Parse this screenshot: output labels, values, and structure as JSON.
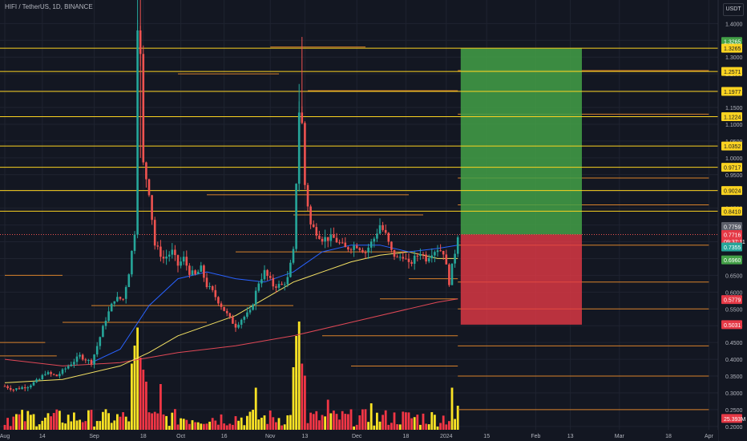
{
  "header": {
    "symbol": "HIFI / TetherUS, 1D, BINANCE",
    "currency": "USDT"
  },
  "colors": {
    "background": "#131722",
    "grid": "#1f2330",
    "up": "#26a69a",
    "down": "#ef5350",
    "vol_up": "#fbe324",
    "vol_down": "#f23645",
    "level": "#fbd321",
    "minor_level": "#d9822b",
    "ema_blue": "#2962ff",
    "ema_yellow": "#f5e264",
    "ema_red": "#e04856",
    "target": "#43a047",
    "stop": "#e53946"
  },
  "chart_data": {
    "type": "candlestick",
    "price_range": [
      0.19,
      1.47
    ],
    "y_ticks": [
      "1.4000",
      "1.3500",
      "1.3000",
      "1.2500",
      "1.2000",
      "1.1500",
      "1.1000",
      "1.0500",
      "1.0000",
      "0.9500",
      "0.9000",
      "0.8500",
      "0.8000",
      "0.7500",
      "0.7000",
      "0.6500",
      "0.6000",
      "0.5500",
      "0.5000",
      "0.4500",
      "0.4000",
      "0.3500",
      "0.3000",
      "0.2500",
      "0.2000"
    ],
    "x_ticks": [
      {
        "label": "Aug",
        "day": 0
      },
      {
        "label": "14",
        "day": 13
      },
      {
        "label": "Sep",
        "day": 31
      },
      {
        "label": "18",
        "day": 48
      },
      {
        "label": "Oct",
        "day": 61
      },
      {
        "label": "16",
        "day": 76
      },
      {
        "label": "Nov",
        "day": 92
      },
      {
        "label": "13",
        "day": 104
      },
      {
        "label": "Dec",
        "day": 122
      },
      {
        "label": "18",
        "day": 139
      },
      {
        "label": "2024",
        "day": 153
      },
      {
        "label": "15",
        "day": 167
      },
      {
        "label": "Feb",
        "day": 184
      },
      {
        "label": "13",
        "day": 196
      },
      {
        "label": "Mar",
        "day": 213
      },
      {
        "label": "18",
        "day": 230
      },
      {
        "label": "Apr",
        "day": 244
      }
    ],
    "price_anchors": [
      [
        0,
        0.32
      ],
      [
        3,
        0.31
      ],
      [
        8,
        0.32
      ],
      [
        12,
        0.34
      ],
      [
        14,
        0.36
      ],
      [
        18,
        0.35
      ],
      [
        22,
        0.38
      ],
      [
        26,
        0.41
      ],
      [
        30,
        0.39
      ],
      [
        32,
        0.44
      ],
      [
        35,
        0.52
      ],
      [
        38,
        0.58
      ],
      [
        41,
        0.58
      ],
      [
        43,
        0.66
      ],
      [
        45,
        0.78
      ],
      [
        46,
        1.4
      ],
      [
        47,
        1.3
      ],
      [
        48,
        0.98
      ],
      [
        50,
        0.9
      ],
      [
        52,
        0.74
      ],
      [
        55,
        0.7
      ],
      [
        58,
        0.72
      ],
      [
        60,
        0.68
      ],
      [
        62,
        0.7
      ],
      [
        64,
        0.66
      ],
      [
        66,
        0.65
      ],
      [
        68,
        0.67
      ],
      [
        70,
        0.62
      ],
      [
        72,
        0.6
      ],
      [
        75,
        0.56
      ],
      [
        78,
        0.52
      ],
      [
        80,
        0.5
      ],
      [
        82,
        0.52
      ],
      [
        85,
        0.54
      ],
      [
        88,
        0.63
      ],
      [
        90,
        0.66
      ],
      [
        93,
        0.62
      ],
      [
        96,
        0.62
      ],
      [
        98,
        0.64
      ],
      [
        100,
        0.72
      ],
      [
        102,
        1.14
      ],
      [
        103,
        1.1
      ],
      [
        104,
        0.92
      ],
      [
        106,
        0.8
      ],
      [
        110,
        0.76
      ],
      [
        114,
        0.76
      ],
      [
        118,
        0.73
      ],
      [
        122,
        0.74
      ],
      [
        125,
        0.72
      ],
      [
        128,
        0.76
      ],
      [
        130,
        0.8
      ],
      [
        132,
        0.77
      ],
      [
        134,
        0.72
      ],
      [
        136,
        0.7
      ],
      [
        138,
        0.71
      ],
      [
        140,
        0.68
      ],
      [
        142,
        0.7
      ],
      [
        144,
        0.72
      ],
      [
        146,
        0.7
      ],
      [
        148,
        0.72
      ],
      [
        150,
        0.73
      ],
      [
        152,
        0.72
      ],
      [
        154,
        0.63
      ],
      [
        156,
        0.72
      ],
      [
        157,
        0.772
      ]
    ],
    "ema_blue": [
      [
        30,
        0.39
      ],
      [
        40,
        0.43
      ],
      [
        50,
        0.56
      ],
      [
        60,
        0.64
      ],
      [
        70,
        0.66
      ],
      [
        80,
        0.64
      ],
      [
        90,
        0.63
      ],
      [
        100,
        0.66
      ],
      [
        110,
        0.72
      ],
      [
        120,
        0.74
      ],
      [
        130,
        0.74
      ],
      [
        140,
        0.72
      ],
      [
        150,
        0.73
      ],
      [
        157,
        0.74
      ]
    ],
    "ema_yellow": [
      [
        0,
        0.33
      ],
      [
        20,
        0.34
      ],
      [
        40,
        0.38
      ],
      [
        50,
        0.42
      ],
      [
        60,
        0.47
      ],
      [
        70,
        0.5
      ],
      [
        80,
        0.53
      ],
      [
        90,
        0.58
      ],
      [
        100,
        0.63
      ],
      [
        110,
        0.66
      ],
      [
        120,
        0.69
      ],
      [
        130,
        0.71
      ],
      [
        140,
        0.72
      ],
      [
        150,
        0.7
      ],
      [
        157,
        0.7
      ]
    ],
    "ema_red": [
      [
        0,
        0.4
      ],
      [
        20,
        0.38
      ],
      [
        40,
        0.39
      ],
      [
        60,
        0.42
      ],
      [
        80,
        0.44
      ],
      [
        100,
        0.47
      ],
      [
        120,
        0.51
      ],
      [
        140,
        0.55
      ],
      [
        150,
        0.57
      ],
      [
        157,
        0.58
      ]
    ],
    "volume_spikes": [
      [
        44,
        0.55
      ],
      [
        45,
        0.7
      ],
      [
        46,
        0.85
      ],
      [
        47,
        0.6
      ],
      [
        48,
        0.5
      ],
      [
        49,
        0.4
      ],
      [
        54,
        0.38
      ],
      [
        87,
        0.35
      ],
      [
        100,
        0.52
      ],
      [
        101,
        0.78
      ],
      [
        102,
        0.9
      ],
      [
        103,
        0.55
      ],
      [
        104,
        0.45
      ],
      [
        112,
        0.25
      ],
      [
        127,
        0.22
      ],
      [
        155,
        0.35
      ],
      [
        157,
        0.2
      ]
    ],
    "level_prices": [
      1.3265,
      1.2571,
      1.1977,
      1.1224,
      1.0352,
      0.9717,
      0.9024,
      0.841
    ],
    "minor_levels": [
      [
        -2,
        18,
        0.41
      ],
      [
        20,
        70,
        0.51
      ],
      [
        30,
        100,
        0.56
      ],
      [
        60,
        95,
        1.25
      ],
      [
        70,
        140,
        0.89
      ],
      [
        80,
        140,
        0.72
      ],
      [
        92,
        125,
        1.33
      ],
      [
        100,
        145,
        0.83
      ],
      [
        105,
        157,
        1.2
      ],
      [
        110,
        157,
        0.47
      ],
      [
        120,
        157,
        0.38
      ],
      [
        130,
        157,
        0.58
      ],
      [
        140,
        157,
        0.64
      ],
      [
        0,
        20,
        0.65
      ],
      [
        -2,
        14,
        0.45
      ],
      [
        157,
        244,
        0.86
      ],
      [
        157,
        244,
        0.63
      ],
      [
        157,
        244,
        0.55
      ],
      [
        157,
        244,
        0.44
      ],
      [
        157,
        244,
        0.35
      ],
      [
        157,
        244,
        0.25
      ],
      [
        157,
        244,
        0.74
      ],
      [
        157,
        244,
        0.94
      ],
      [
        157,
        244,
        1.13
      ],
      [
        157,
        244,
        1.26
      ]
    ],
    "position": {
      "entry": 0.7716,
      "target": 1.3265,
      "stop": 0.5031,
      "start_day": 158,
      "end_day": 200
    },
    "price_labels": [
      {
        "text": "1.3265",
        "price": 1.3465,
        "style": "green"
      },
      {
        "text": "1.3265",
        "price": 1.3265,
        "style": "yellow"
      },
      {
        "text": "1.2571",
        "price": 1.2571,
        "style": "yellow"
      },
      {
        "text": "1.1977",
        "price": 1.1977,
        "style": "yellow"
      },
      {
        "text": "1.1224",
        "price": 1.1224,
        "style": "yellow"
      },
      {
        "text": "1.0352",
        "price": 1.0352,
        "style": "yellow"
      },
      {
        "text": "0.9717",
        "price": 0.9717,
        "style": "yellow"
      },
      {
        "text": "0.9024",
        "price": 0.9024,
        "style": "yellow"
      },
      {
        "text": "0.8410",
        "price": 0.841,
        "style": "yellow"
      },
      {
        "text": "0.7759",
        "price": 0.7955,
        "style": "grey"
      },
      {
        "text": "0.7716",
        "price": 0.7716,
        "style": "red"
      },
      {
        "text": "09:37:11",
        "price": 0.7516,
        "style": "red"
      },
      {
        "text": "0.7355",
        "price": 0.7345,
        "style": "teal"
      },
      {
        "text": "0.6960",
        "price": 0.696,
        "style": "green"
      },
      {
        "text": "0.5779",
        "price": 0.5779,
        "style": "red"
      },
      {
        "text": "0.5031",
        "price": 0.5031,
        "style": "red"
      },
      {
        "text": "25.393M",
        "price": 0.2236,
        "style": "red"
      }
    ]
  }
}
